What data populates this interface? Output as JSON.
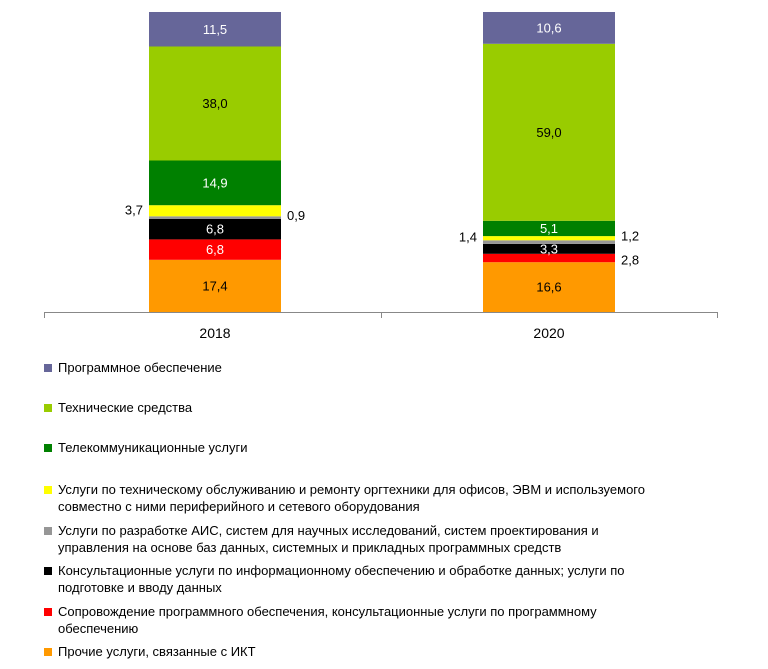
{
  "chart_data": {
    "type": "bar",
    "stacked": true,
    "categories": [
      "2018",
      "2020"
    ],
    "series": [
      {
        "name": "Прочие услуги, связанные с ИКТ",
        "color": "#FF9900",
        "values": [
          17.4,
          16.6
        ],
        "labels": [
          "17,4",
          "16,6"
        ],
        "label_color": "#000000"
      },
      {
        "name": "Сопровождение программного обеспечения, консультационные услуги по программному обеспечению",
        "color": "#FF0000",
        "values": [
          6.8,
          2.8
        ],
        "labels": [
          "6,8",
          "2,8"
        ],
        "label_color": "#FFFFFF"
      },
      {
        "name": "Консультационные услуги по информационному обеспечению и обработке данных; услуги по подготовке и вводу данных",
        "color": "#000000",
        "values": [
          6.8,
          3.3
        ],
        "labels": [
          "6,8",
          "3,3"
        ],
        "label_color": "#FFFFFF"
      },
      {
        "name": "Услуги по разработке АИС, систем для научных исследований, систем проектирования и управления на основе баз данных, системных и прикладных программных средств",
        "color": "#969696",
        "values": [
          0.9,
          1.2
        ],
        "labels": [
          "0,9",
          "1,2"
        ],
        "label_color": "#000000"
      },
      {
        "name": "Услуги по техническому обслуживанию и ремонту оргтехники для офисов, ЭВМ и используемого совместно с ними периферийного  и сетевого оборудования",
        "color": "#FFFF00",
        "values": [
          3.7,
          1.4
        ],
        "labels": [
          "3,7",
          "1,4"
        ],
        "label_color": "#000000"
      },
      {
        "name": "Телекоммуникационные услуги",
        "color": "#008000",
        "values": [
          14.9,
          5.1
        ],
        "labels": [
          "14,9",
          "5,1"
        ],
        "label_color": "#FFFFFF"
      },
      {
        "name": "Технические средства",
        "color": "#99CC00",
        "values": [
          38.0,
          59.0
        ],
        "labels": [
          "38,0",
          "59,0"
        ],
        "label_color": "#000000"
      },
      {
        "name": "Программное обеспечение",
        "color": "#666699",
        "values": [
          11.5,
          10.6
        ],
        "labels": [
          "11,5",
          "10,6"
        ],
        "label_color": "#FFFFFF"
      }
    ],
    "ylim": [
      0,
      100
    ],
    "legend_position": "bottom",
    "grid": false
  },
  "legend": [
    {
      "label": "Программное обеспечение",
      "color": "#666699"
    },
    {
      "label": "Технические средства",
      "color": "#99CC00"
    },
    {
      "label": "Телекоммуникационные услуги",
      "color": "#008000"
    },
    {
      "label": "Услуги по техническому обслуживанию и ремонту оргтехники для офисов, ЭВМ и используемого\nсовместно с ними периферийного  и сетевого оборудования",
      "color": "#FFFF00"
    },
    {
      "label": "Услуги по разработке АИС, систем для научных исследований, систем проектирования и\nуправления на основе баз данных, системных и прикладных программных средств",
      "color": "#969696"
    },
    {
      "label": "Консультационные услуги по информационному обеспечению и обработке данных; услуги по\nподготовке и вводу данных",
      "color": "#000000"
    },
    {
      "label": "Сопровождение программного обеспечения, консультационные услуги по программному\nобеспечению",
      "color": "#FF0000"
    },
    {
      "label": "Прочие услуги, связанные с ИКТ",
      "color": "#FF9900"
    }
  ]
}
